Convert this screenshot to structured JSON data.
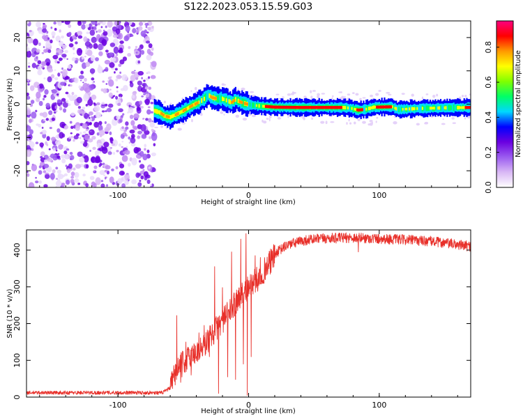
{
  "title": "S122.2023.053.15.59.G03",
  "chart_data": [
    {
      "type": "heatmap",
      "name": "spectrogram",
      "xlabel": "Height of straight line (km)",
      "ylabel": "Frequency (Hz)",
      "xlim": [
        -170,
        170
      ],
      "ylim": [
        -25,
        25
      ],
      "xticks": [
        -100,
        0,
        100
      ],
      "yticks": [
        -20,
        -10,
        0,
        10,
        20
      ],
      "noise_region_x": [
        -170,
        -72
      ],
      "ridge_frequency_trace": [
        [
          -72,
          -2
        ],
        [
          -68,
          -2.5
        ],
        [
          -64,
          -3.6
        ],
        [
          -60,
          -3.9
        ],
        [
          -56,
          -3.2
        ],
        [
          -50,
          -2
        ],
        [
          -44,
          -0.6
        ],
        [
          -38,
          0.6
        ],
        [
          -34,
          1.6
        ],
        [
          -31,
          2.8
        ],
        [
          -28,
          2
        ],
        [
          -24,
          1.6
        ],
        [
          -20,
          1.6
        ],
        [
          -16,
          1
        ],
        [
          -13,
          0.5
        ],
        [
          -10,
          1.4
        ],
        [
          -6,
          0.6
        ],
        [
          -2,
          0.1
        ],
        [
          3,
          -0.3
        ],
        [
          10,
          -0.6
        ],
        [
          20,
          -0.9
        ],
        [
          40,
          -1
        ],
        [
          60,
          -1
        ],
        [
          72,
          -1
        ],
        [
          78,
          -1.2
        ],
        [
          84,
          -1.8
        ],
        [
          90,
          -1.5
        ],
        [
          96,
          -0.9
        ],
        [
          110,
          -0.8
        ],
        [
          114,
          -1.6
        ],
        [
          130,
          -1.3
        ],
        [
          150,
          -1.1
        ],
        [
          170,
          -1
        ]
      ],
      "colorbar": {
        "label": "Normalized spectral amplitude",
        "range": [
          0.0,
          0.95
        ],
        "ticks": [
          0.0,
          0.2,
          0.4,
          0.6,
          0.8
        ],
        "tick_labels": [
          "0.0",
          "0.2",
          "0.4",
          "0.6",
          "0.8"
        ],
        "colormap": [
          "#ffffff",
          "#d9b8f5",
          "#9b5cf0",
          "#6a00e0",
          "#0000ff",
          "#00d8ff",
          "#00ff66",
          "#80ff00",
          "#ffff00",
          "#ff9900",
          "#ff0000",
          "#ff0080"
        ]
      }
    },
    {
      "type": "line",
      "name": "snr",
      "xlabel": "Height of straight line (km)",
      "ylabel": "SNR (10 * v/v)",
      "xlim": [
        -170,
        170
      ],
      "ylim": [
        0,
        455
      ],
      "xticks": [
        -100,
        0,
        100
      ],
      "yticks": [
        0,
        100,
        200,
        300,
        400
      ],
      "color": "#e8302a",
      "envelope": [
        [
          -170,
          12
        ],
        [
          -100,
          12
        ],
        [
          -66,
          12
        ],
        [
          -60,
          25
        ],
        [
          -55,
          75
        ],
        [
          -45,
          110
        ],
        [
          -35,
          135
        ],
        [
          -25,
          185
        ],
        [
          -15,
          230
        ],
        [
          -8,
          270
        ],
        [
          0,
          300
        ],
        [
          8,
          325
        ],
        [
          15,
          360
        ],
        [
          22,
          395
        ],
        [
          30,
          415
        ],
        [
          45,
          428
        ],
        [
          60,
          432
        ],
        [
          80,
          434
        ],
        [
          100,
          431
        ],
        [
          120,
          428
        ],
        [
          140,
          424
        ],
        [
          160,
          415
        ],
        [
          170,
          410
        ]
      ],
      "spikes": [
        [
          -55,
          222
        ],
        [
          -52,
          40
        ],
        [
          -48,
          150
        ],
        [
          -44,
          60
        ],
        [
          -38,
          175
        ],
        [
          -34,
          195
        ],
        [
          -30,
          110
        ],
        [
          -26,
          355
        ],
        [
          -23,
          10
        ],
        [
          -20,
          298
        ],
        [
          -16,
          55
        ],
        [
          -13,
          395
        ],
        [
          -10,
          48
        ],
        [
          -8,
          290
        ],
        [
          -6,
          430
        ],
        [
          -4,
          90
        ],
        [
          -2,
          445
        ],
        [
          -1,
          5
        ],
        [
          2,
          110
        ],
        [
          5,
          385
        ],
        [
          9,
          380
        ],
        [
          84,
          395
        ]
      ]
    }
  ]
}
